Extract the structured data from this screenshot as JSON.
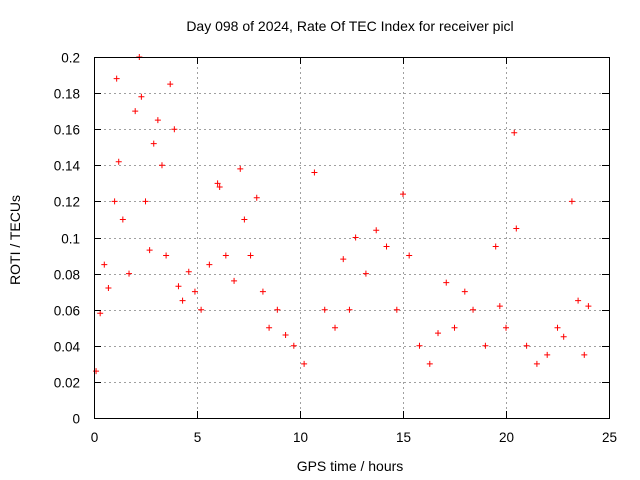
{
  "chart_data": {
    "type": "scatter",
    "title": "Day 098 of 2024, Rate Of TEC Index for receiver picl",
    "xlabel": "GPS time / hours",
    "ylabel": "ROTI / TECUs",
    "xlim": [
      0,
      25
    ],
    "ylim": [
      0,
      0.2
    ],
    "x_ticks": [
      0,
      5,
      10,
      15,
      20,
      25
    ],
    "x_tick_labels": [
      "0",
      "5",
      "10",
      "15",
      "20",
      "25"
    ],
    "y_ticks": [
      0,
      0.02,
      0.04,
      0.06,
      0.08,
      0.1,
      0.12,
      0.14,
      0.16,
      0.18,
      0.2
    ],
    "y_tick_labels": [
      "0",
      "0.02",
      "0.04",
      "0.06",
      "0.08",
      "0.1",
      "0.12",
      "0.14",
      "0.16",
      "0.18",
      "0.2"
    ],
    "grid": true,
    "legend": "none",
    "marker": "plus",
    "series": [
      {
        "color": "#ff0000",
        "x": [
          0.1,
          0.3,
          0.5,
          0.7,
          1.0,
          1.1,
          1.2,
          1.4,
          1.7,
          2.0,
          2.2,
          2.3,
          2.5,
          2.7,
          2.9,
          3.1,
          3.3,
          3.5,
          3.7,
          3.9,
          4.1,
          4.3,
          4.6,
          4.9,
          5.2,
          5.6,
          6.0,
          6.1,
          6.4,
          6.8,
          7.1,
          7.3,
          7.6,
          7.9,
          8.2,
          8.5,
          8.9,
          9.3,
          9.7,
          10.2,
          10.7,
          11.2,
          11.7,
          12.1,
          12.4,
          12.7,
          13.2,
          13.7,
          14.2,
          14.7,
          15.0,
          15.3,
          15.8,
          16.3,
          16.7,
          17.1,
          17.5,
          18.0,
          18.4,
          19.0,
          19.5,
          19.7,
          20.0,
          20.4,
          20.5,
          21.0,
          21.5,
          22.0,
          22.5,
          22.8,
          23.2,
          23.5,
          23.8,
          24.0
        ],
        "y": [
          0.026,
          0.058,
          0.085,
          0.072,
          0.12,
          0.188,
          0.142,
          0.11,
          0.08,
          0.17,
          0.2,
          0.178,
          0.12,
          0.093,
          0.152,
          0.165,
          0.14,
          0.09,
          0.185,
          0.16,
          0.073,
          0.065,
          0.081,
          0.07,
          0.06,
          0.085,
          0.13,
          0.128,
          0.09,
          0.076,
          0.138,
          0.11,
          0.09,
          0.122,
          0.07,
          0.05,
          0.06,
          0.046,
          0.04,
          0.03,
          0.136,
          0.06,
          0.05,
          0.088,
          0.06,
          0.1,
          0.08,
          0.104,
          0.095,
          0.06,
          0.124,
          0.09,
          0.04,
          0.03,
          0.047,
          0.075,
          0.05,
          0.07,
          0.06,
          0.04,
          0.095,
          0.062,
          0.05,
          0.158,
          0.105,
          0.04,
          0.03,
          0.035,
          0.05,
          0.045,
          0.12,
          0.065,
          0.035,
          0.062
        ]
      }
    ]
  }
}
